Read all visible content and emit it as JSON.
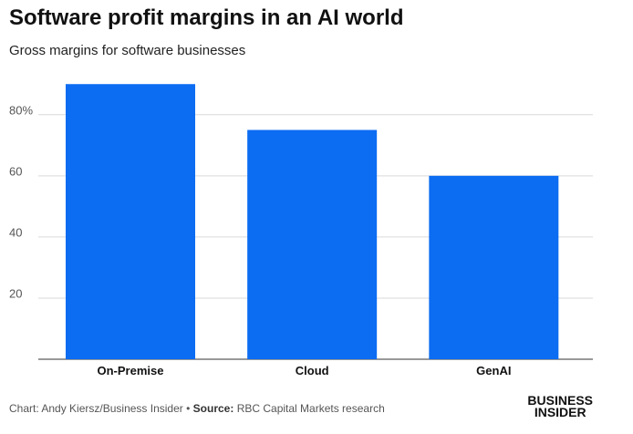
{
  "title": "Software profit margins in an AI world",
  "subtitle": "Gross margins for software businesses",
  "footer": {
    "chart_label": "Chart:",
    "chart_author": "Andy Kiersz/Business Insider",
    "bullet": "•",
    "source_label": "Source:",
    "source_text": "RBC Capital Markets research"
  },
  "logo": {
    "line1": "BUSINESS",
    "line2": "INSIDER"
  },
  "colors": {
    "bar": "#0c6cf2",
    "grid": "#d9d9d9",
    "axis": "#555555"
  },
  "chart_data": {
    "type": "bar",
    "title": "Software profit margins in an AI world",
    "subtitle": "Gross margins for software businesses",
    "xlabel": "",
    "ylabel": "",
    "categories": [
      "On-Premise",
      "Cloud",
      "GenAI"
    ],
    "values": [
      90,
      75,
      60
    ],
    "unit": "%",
    "ylim": [
      0,
      100
    ],
    "yticks": [
      20,
      40,
      60,
      80
    ],
    "ytick_labels": [
      "20",
      "40",
      "60",
      "80%"
    ],
    "grid": true,
    "legend": "none"
  }
}
